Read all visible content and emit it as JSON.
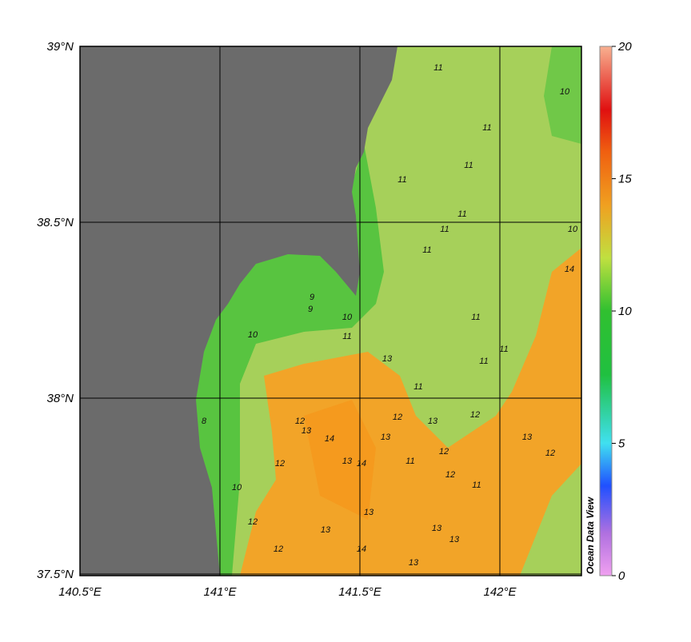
{
  "map": {
    "lon_ticks": [
      {
        "value": 140.5,
        "label": "140.5°E"
      },
      {
        "value": 141,
        "label": "141°E"
      },
      {
        "value": 141.5,
        "label": "141.5°E"
      },
      {
        "value": 142,
        "label": "142°E"
      }
    ],
    "lat_ticks": [
      {
        "value": 39,
        "label": "39°N"
      },
      {
        "value": 38.5,
        "label": "38.5°N"
      },
      {
        "value": 38,
        "label": "38°N"
      },
      {
        "value": 37.5,
        "label": "37.5°N"
      }
    ],
    "colorbar": {
      "lim": [
        0,
        20
      ],
      "ticks": [
        0,
        5,
        10,
        15,
        20
      ]
    },
    "credit": "Ocean Data View",
    "contour_labels": [
      11,
      10,
      11,
      11,
      11,
      11,
      11,
      11,
      10,
      9,
      10,
      11,
      11,
      11,
      11,
      11,
      13,
      12,
      13,
      14,
      13,
      12,
      13,
      13,
      12,
      11,
      12,
      13,
      14,
      12,
      10,
      12,
      12,
      13,
      13,
      14,
      13,
      12,
      11,
      14,
      13,
      13,
      9,
      8,
      10,
      12
    ]
  }
}
